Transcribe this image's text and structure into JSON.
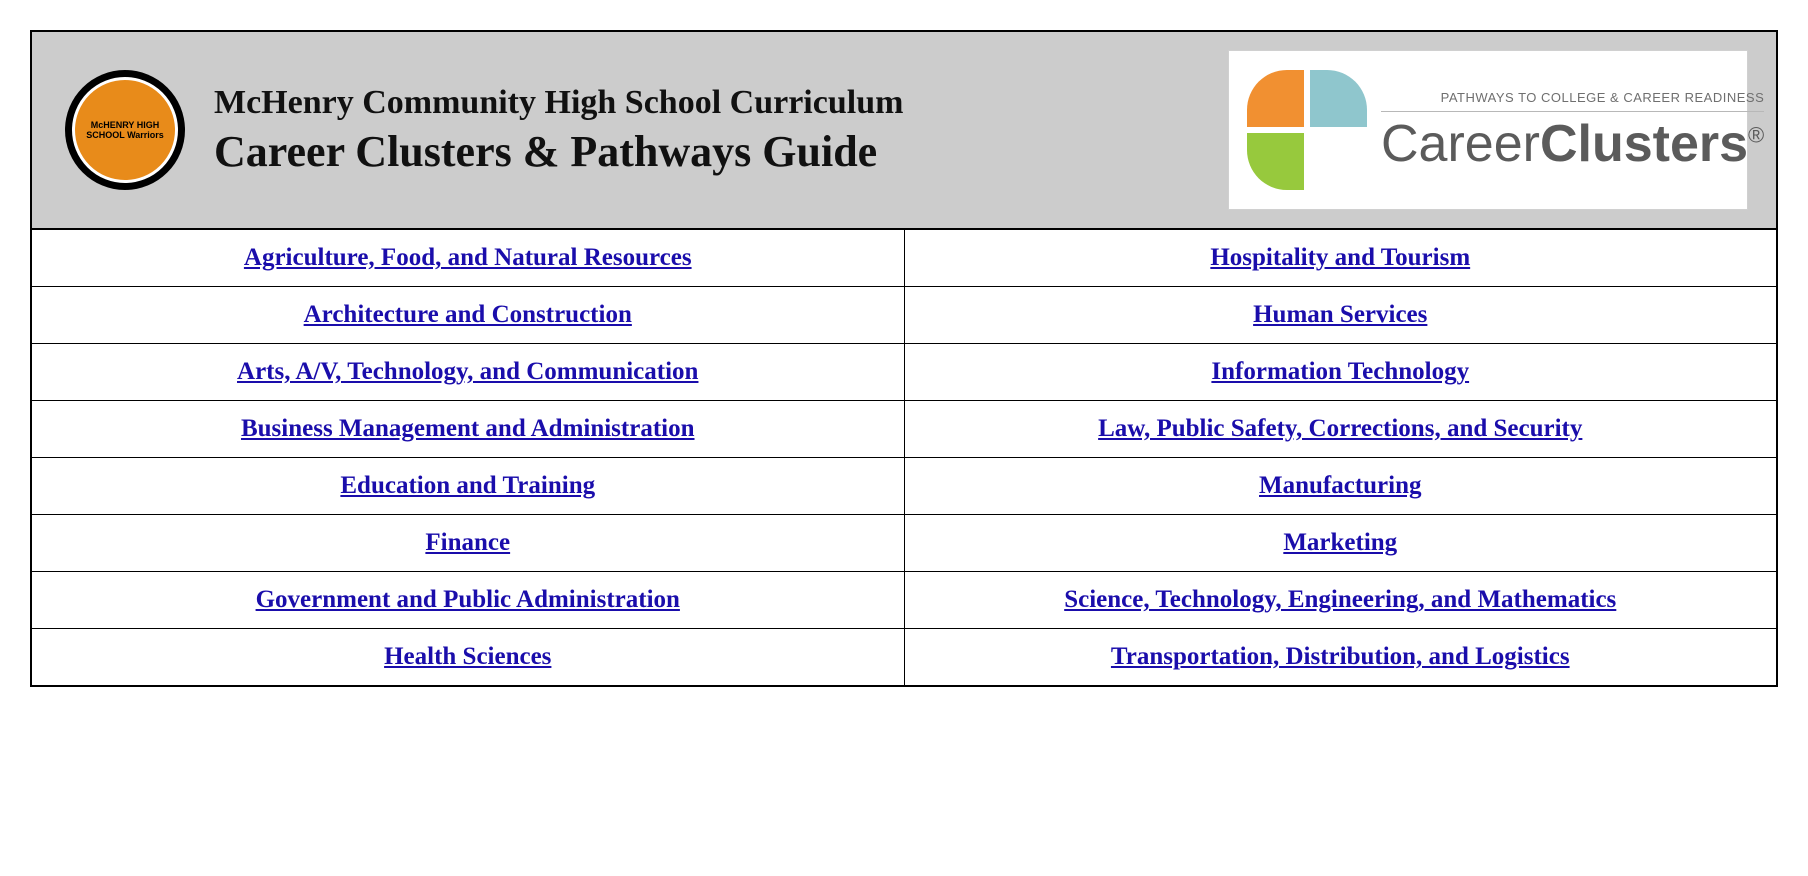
{
  "header": {
    "school_logo_text": "McHENRY HIGH SCHOOL\nWarriors",
    "title_line1": "McHenry Community High School Curriculum",
    "title_line2": "Career Clusters & Pathways Guide",
    "cc_tagline": "PATHWAYS TO COLLEGE & CAREER READINESS",
    "cc_brand_light": "Career",
    "cc_brand_bold": "Clusters",
    "cc_brand_reg": "®"
  },
  "rows": [
    {
      "left": "Agriculture, Food, and Natural Resources",
      "right": "Hospitality and Tourism"
    },
    {
      "left": "Architecture and Construction",
      "right": "Human Services"
    },
    {
      "left": "Arts, A/V, Technology, and Communication",
      "right": "Information Technology"
    },
    {
      "left": "Business Management and Administration",
      "right": "Law, Public Safety, Corrections, and Security"
    },
    {
      "left": "Education and Training",
      "right": "Manufacturing"
    },
    {
      "left": "Finance",
      "right": "Marketing"
    },
    {
      "left": "Government and Public Administration",
      "right": "Science, Technology, Engineering, and Mathematics"
    },
    {
      "left": "Health Sciences",
      "right": "Transportation, Distribution, and Logistics"
    }
  ],
  "colors": {
    "header_bg": "#cccccc",
    "border": "#000000",
    "link": "#1a0dab",
    "petal_tl": "#f19031",
    "petal_tr": "#8fc6cd",
    "petal_bl": "#97c93d",
    "cc_text": "#5b5b5b"
  },
  "typography": {
    "title1_fontsize": 34,
    "title2_fontsize": 44,
    "link_fontsize": 25,
    "cc_brand_fontsize": 52,
    "cc_tagline_fontsize": 13
  }
}
